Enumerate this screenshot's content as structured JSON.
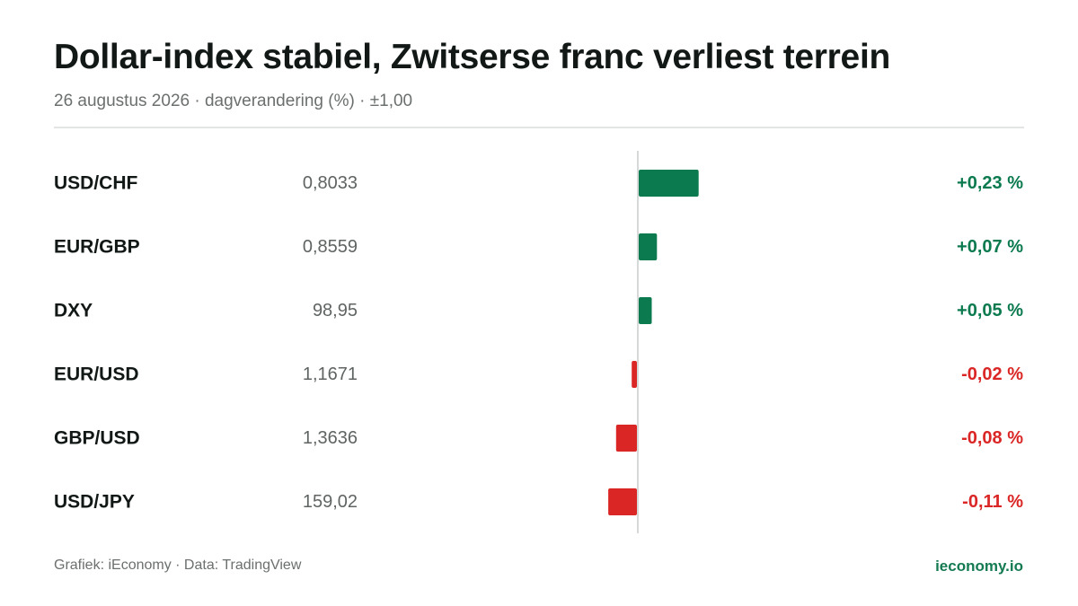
{
  "header": {
    "title": "Dollar-index stabiel, Zwitserse franc verliest terrein",
    "subtitle": "26 augustus 2026 · dagverandering (%) · ±1,00"
  },
  "footer": {
    "source": "Grafiek: iEconomy · Data: TradingView",
    "brand": "ieconomy.io"
  },
  "colors": {
    "positive": "#0b7a4f",
    "negative": "#db2626",
    "axis": "#d7d9d8",
    "label": "#111816",
    "price": "#5f6463"
  },
  "chart_data": {
    "type": "bar",
    "orientation": "horizontal",
    "xlim": [
      -1.0,
      1.0
    ],
    "categories": [
      "USD/CHF",
      "EUR/GBP",
      "DXY",
      "EUR/USD",
      "GBP/USD",
      "USD/JPY"
    ],
    "prices": [
      "0,8033",
      "0,8559",
      "98,95",
      "1,1671",
      "1,3636",
      "159,02"
    ],
    "values": [
      0.23,
      0.07,
      0.05,
      -0.02,
      -0.08,
      -0.11
    ],
    "value_labels": [
      "+0,23 %",
      "+0,07 %",
      "+0,05 %",
      "-0,02 %",
      "-0,08 %",
      "-0,11 %"
    ]
  }
}
